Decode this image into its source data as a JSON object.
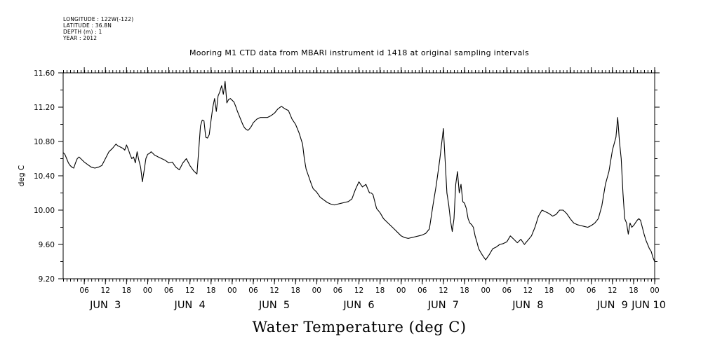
{
  "header": {
    "longitude": "LONGITUDE : 122W(-122)",
    "latitude": "LATITUDE : 36.8N",
    "depth": "DEPTH (m) : 1",
    "year": "YEAR : 2012"
  },
  "chart_data": {
    "type": "line",
    "title": "Mooring M1 CTD data from MBARI instrument id 1418 at original sampling intervals",
    "xlabel": "Water Temperature (deg C)",
    "ylabel": "deg C",
    "ylim": [
      9.2,
      11.6
    ],
    "xlim_hours": [
      0,
      168
    ],
    "y_ticks": [
      "9.20",
      "9.60",
      "10.00",
      "10.40",
      "10.80",
      "11.20",
      "11.60"
    ],
    "hour_ticks": [
      "06",
      "12",
      "18",
      "00",
      "06",
      "12",
      "18",
      "00",
      "06",
      "12",
      "18",
      "00",
      "06",
      "12",
      "18",
      "00",
      "06",
      "12",
      "18",
      "00",
      "06",
      "12",
      "18",
      "00",
      "06",
      "12",
      "18",
      "00"
    ],
    "day_labels": [
      "JUN  3",
      "JUN  4",
      "JUN  5",
      "JUN  6",
      "JUN  7",
      "JUN  8",
      "JUN  9",
      "JUN 10"
    ],
    "grid": false,
    "series": [
      {
        "color": "#000000",
        "x": [
          0.0,
          0.5,
          1.0,
          1.5,
          2.0,
          2.5,
          3.0,
          3.5,
          4.0,
          4.5,
          5.0,
          6.0,
          7.0,
          8.0,
          9.0,
          10.0,
          11.0,
          12.0,
          13.0,
          14.0,
          15.0,
          15.5,
          16.0,
          16.5,
          17.0,
          17.5,
          18.0,
          18.5,
          19.0,
          19.5,
          20.0,
          20.5,
          21.0,
          21.5,
          22.0,
          22.5,
          23.0,
          23.5,
          24.0,
          24.5,
          25.0,
          25.5,
          26.0,
          26.5,
          27.0,
          28.0,
          29.0,
          30.0,
          31.0,
          32.0,
          33.0,
          34.0,
          35.0,
          36.0,
          37.0,
          38.0,
          39.0,
          39.5,
          40.0,
          40.5,
          41.0,
          41.5,
          42.0,
          42.5,
          43.0,
          43.5,
          44.0,
          44.5,
          45.0,
          45.5,
          46.0,
          46.5,
          47.0,
          47.5,
          48.0,
          48.5,
          49.0,
          49.5,
          50.0,
          50.5,
          51.0,
          51.5,
          52.0,
          52.5,
          53.0,
          53.5,
          54.0,
          55.0,
          56.0,
          57.0,
          58.0,
          59.0,
          60.0,
          61.0,
          62.0,
          63.0,
          64.0,
          65.0,
          66.0,
          67.0,
          68.0,
          68.5,
          69.0,
          69.5,
          70.0,
          70.5,
          71.0,
          72.0,
          73.0,
          74.0,
          75.0,
          76.0,
          77.0,
          78.0,
          79.0,
          80.0,
          81.0,
          82.0,
          83.0,
          84.0,
          85.0,
          86.0,
          86.5,
          87.0,
          87.5,
          88.0,
          88.5,
          89.0,
          90.0,
          91.0,
          92.0,
          93.0,
          94.0,
          95.0,
          96.0,
          97.0,
          98.0,
          99.0,
          100.0,
          101.0,
          102.0,
          103.0,
          104.0,
          105.0,
          106.0,
          107.0,
          108.0,
          109.0,
          109.5,
          110.0,
          110.5,
          111.0,
          111.5,
          112.0,
          112.5,
          113.0,
          113.5,
          114.0,
          114.5,
          115.0,
          115.5,
          116.0,
          116.5,
          117.0,
          117.5,
          118.0,
          119.0,
          120.0,
          121.0,
          122.0,
          123.0,
          124.0,
          125.0,
          126.0,
          127.0,
          128.0,
          129.0,
          130.0,
          131.0,
          132.0,
          133.0,
          134.0,
          135.0,
          136.0,
          137.0,
          138.0,
          139.0,
          140.0,
          141.0,
          142.0,
          143.0,
          144.0,
          145.0,
          146.0,
          147.0,
          148.0,
          149.0,
          150.0,
          151.0,
          152.0,
          153.0,
          154.0,
          155.0,
          156.0,
          157.0,
          157.5,
          158.0,
          158.5,
          159.0,
          159.5,
          160.0,
          160.5,
          161.0,
          161.5,
          162.0,
          162.5,
          163.0,
          163.5,
          164.0,
          164.5,
          165.0,
          165.5,
          166.0,
          166.5,
          167.0,
          167.5,
          168.0
        ],
        "values": [
          10.67,
          10.65,
          10.6,
          10.55,
          10.52,
          10.5,
          10.49,
          10.55,
          10.6,
          10.62,
          10.6,
          10.56,
          10.53,
          10.5,
          10.49,
          10.5,
          10.52,
          10.6,
          10.68,
          10.72,
          10.77,
          10.75,
          10.74,
          10.73,
          10.72,
          10.7,
          10.76,
          10.71,
          10.65,
          10.6,
          10.62,
          10.55,
          10.68,
          10.58,
          10.5,
          10.33,
          10.46,
          10.6,
          10.65,
          10.66,
          10.68,
          10.66,
          10.64,
          10.63,
          10.62,
          10.6,
          10.58,
          10.55,
          10.56,
          10.5,
          10.47,
          10.55,
          10.6,
          10.52,
          10.46,
          10.42,
          10.98,
          11.05,
          11.04,
          10.85,
          10.84,
          10.88,
          11.05,
          11.2,
          11.3,
          11.15,
          11.33,
          11.38,
          11.45,
          11.35,
          11.5,
          11.25,
          11.29,
          11.3,
          11.28,
          11.26,
          11.21,
          11.15,
          11.1,
          11.05,
          11.0,
          10.96,
          10.94,
          10.93,
          10.95,
          10.98,
          11.02,
          11.06,
          11.08,
          11.08,
          11.08,
          11.1,
          11.13,
          11.18,
          11.21,
          11.18,
          11.16,
          11.06,
          11.0,
          10.9,
          10.77,
          10.6,
          10.48,
          10.42,
          10.36,
          10.3,
          10.25,
          10.21,
          10.15,
          10.12,
          10.09,
          10.07,
          10.06,
          10.07,
          10.08,
          10.09,
          10.1,
          10.13,
          10.24,
          10.33,
          10.27,
          10.3,
          10.25,
          10.2,
          10.2,
          10.18,
          10.1,
          10.02,
          9.97,
          9.9,
          9.86,
          9.82,
          9.78,
          9.74,
          9.7,
          9.68,
          9.67,
          9.68,
          9.69,
          9.7,
          9.71,
          9.73,
          9.78,
          10.05,
          10.3,
          10.6,
          10.95,
          10.2,
          10.06,
          9.88,
          9.75,
          9.9,
          10.3,
          10.45,
          10.2,
          10.3,
          10.1,
          10.08,
          10.02,
          9.9,
          9.85,
          9.83,
          9.8,
          9.7,
          9.63,
          9.55,
          9.48,
          9.42,
          9.48,
          9.55,
          9.57,
          9.6,
          9.61,
          9.63,
          9.7,
          9.66,
          9.62,
          9.66,
          9.6,
          9.65,
          9.7,
          9.8,
          9.93,
          10.0,
          9.98,
          9.96,
          9.93,
          9.95,
          10.0,
          10.0,
          9.96,
          9.9,
          9.85,
          9.83,
          9.82,
          9.81,
          9.8,
          9.82,
          9.85,
          9.9,
          10.05,
          10.3,
          10.45,
          10.7,
          10.85,
          11.08,
          10.8,
          10.6,
          10.2,
          9.9,
          9.85,
          9.72,
          9.85,
          9.8,
          9.82,
          9.85,
          9.88,
          9.9,
          9.88,
          9.8,
          9.72,
          9.65,
          9.6,
          9.55,
          9.52,
          9.45,
          9.4
        ]
      }
    ]
  }
}
